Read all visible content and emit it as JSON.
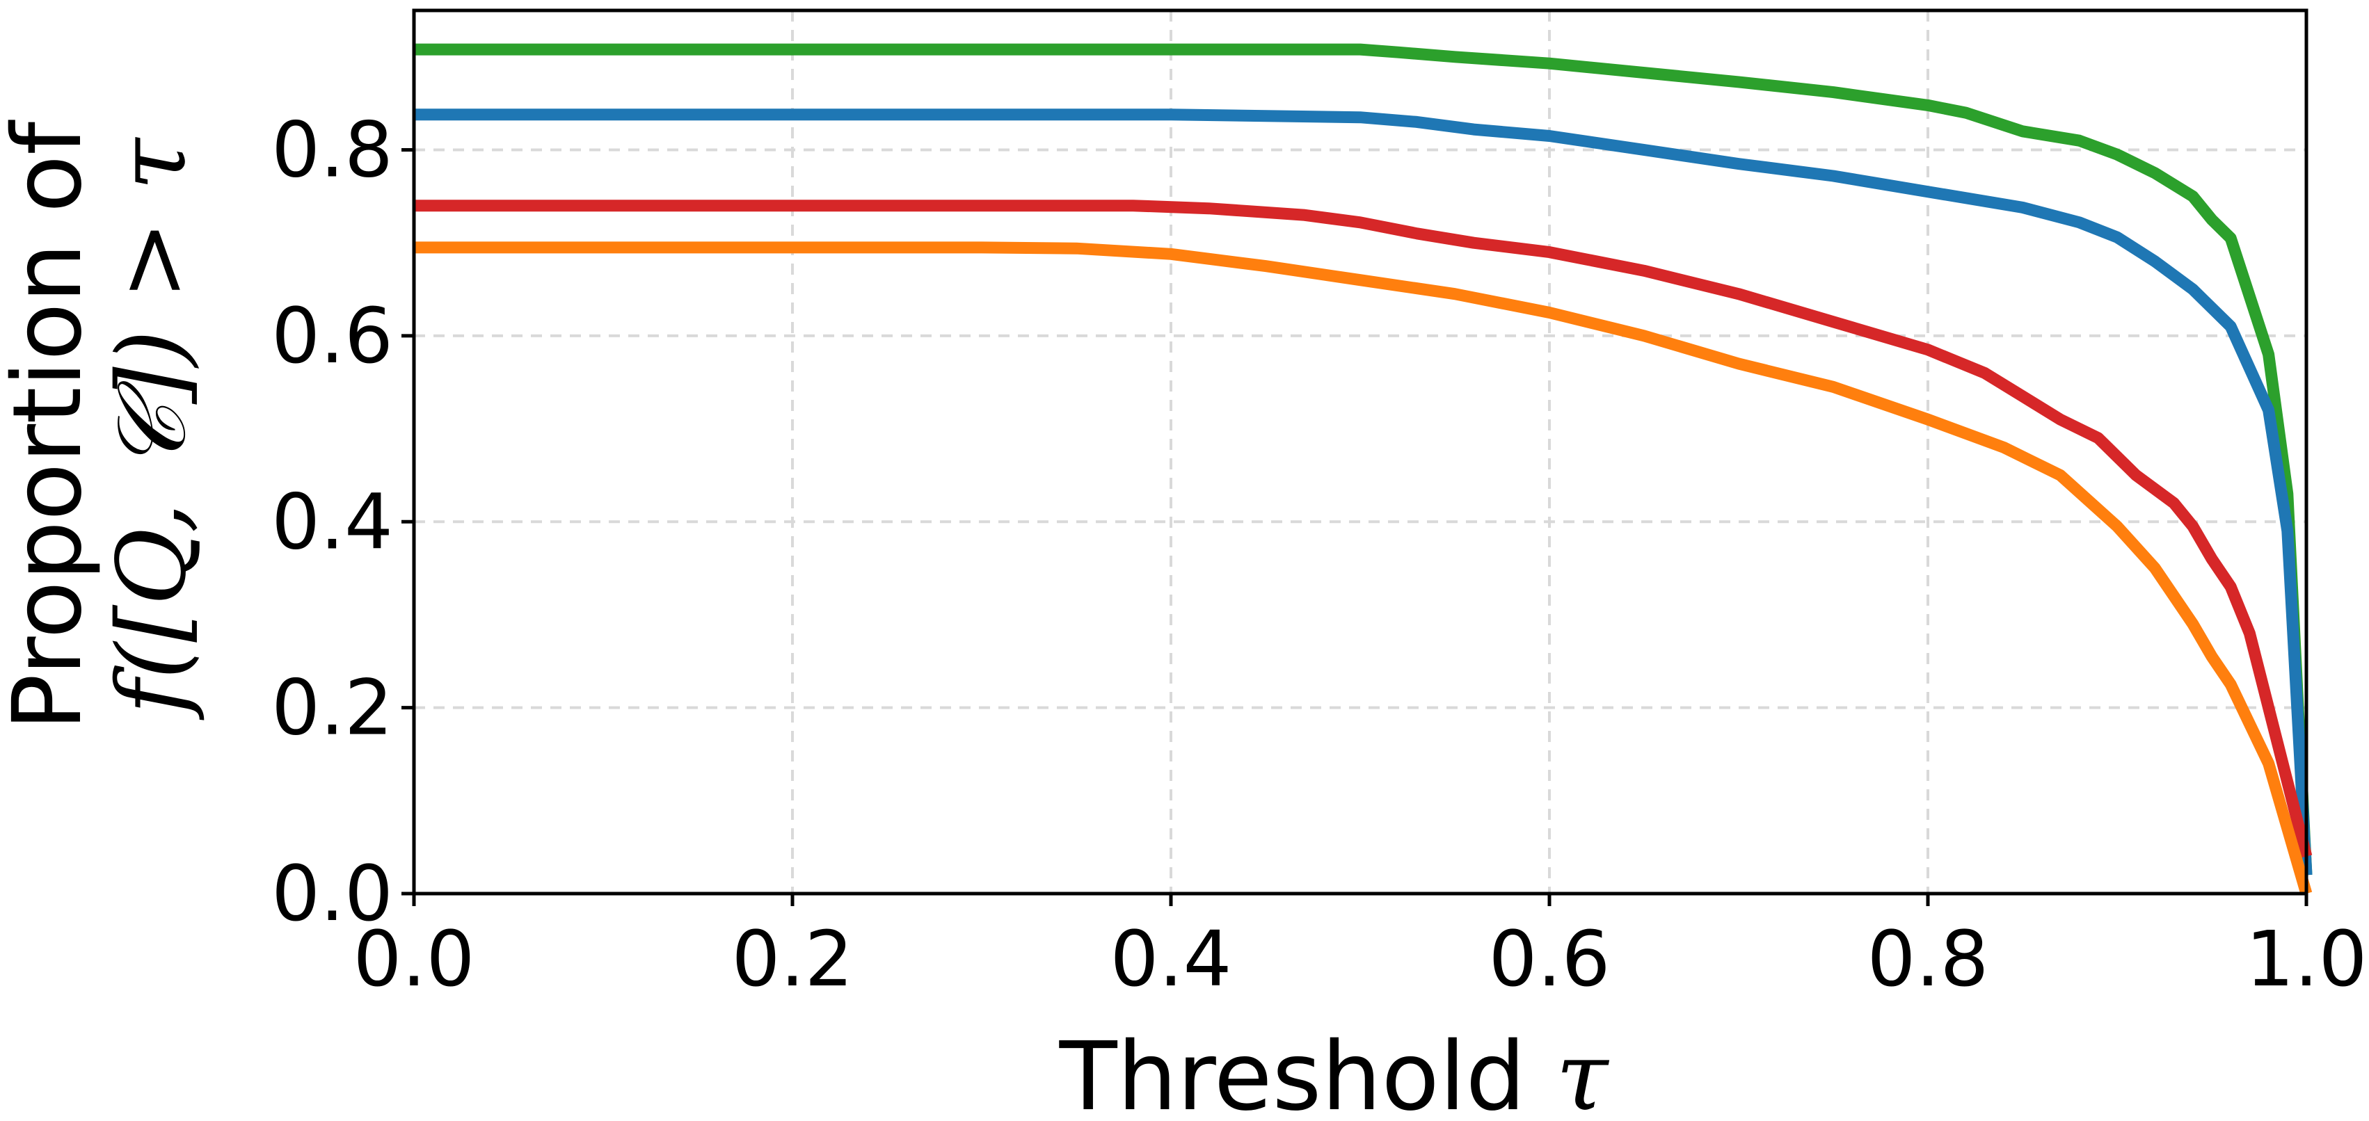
{
  "chart_data": {
    "type": "line",
    "title": "",
    "xlabel_text": "Threshold ",
    "xlabel_symbol": "τ",
    "ylabel_line1": "Proportion of",
    "ylabel_line2": "f([Q, 𝒞]) > τ",
    "xlim": [
      0.0,
      1.0
    ],
    "ylim": [
      0.0,
      0.95
    ],
    "xticks": [
      0.0,
      0.2,
      0.4,
      0.6,
      0.8,
      1.0
    ],
    "xtick_labels": [
      "0.0",
      "0.2",
      "0.4",
      "0.6",
      "0.8",
      "1.0"
    ],
    "yticks": [
      0.0,
      0.2,
      0.4,
      0.6,
      0.8
    ],
    "ytick_labels": [
      "0.0",
      "0.2",
      "0.4",
      "0.6",
      "0.8"
    ],
    "grid": true,
    "legend": "none",
    "series": [
      {
        "color": "#2ca02c",
        "x": [
          0.0,
          0.1,
          0.2,
          0.3,
          0.4,
          0.5,
          0.52,
          0.55,
          0.6,
          0.65,
          0.7,
          0.75,
          0.8,
          0.82,
          0.85,
          0.88,
          0.9,
          0.92,
          0.94,
          0.95,
          0.96,
          0.98,
          0.99,
          1.0
        ],
        "values": [
          0.908,
          0.908,
          0.908,
          0.908,
          0.908,
          0.908,
          0.905,
          0.9,
          0.893,
          0.883,
          0.873,
          0.862,
          0.848,
          0.84,
          0.82,
          0.81,
          0.795,
          0.775,
          0.75,
          0.725,
          0.705,
          0.58,
          0.43,
          0.02
        ]
      },
      {
        "color": "#1f77b4",
        "x": [
          0.0,
          0.1,
          0.2,
          0.3,
          0.4,
          0.5,
          0.53,
          0.56,
          0.6,
          0.65,
          0.7,
          0.75,
          0.8,
          0.85,
          0.88,
          0.9,
          0.92,
          0.94,
          0.96,
          0.98,
          0.99,
          1.0
        ],
        "values": [
          0.838,
          0.838,
          0.838,
          0.838,
          0.838,
          0.835,
          0.83,
          0.822,
          0.815,
          0.8,
          0.785,
          0.772,
          0.755,
          0.738,
          0.722,
          0.706,
          0.68,
          0.65,
          0.61,
          0.52,
          0.39,
          0.02
        ]
      },
      {
        "color": "#d62728",
        "x": [
          0.0,
          0.1,
          0.2,
          0.3,
          0.38,
          0.42,
          0.47,
          0.5,
          0.53,
          0.56,
          0.6,
          0.65,
          0.7,
          0.75,
          0.8,
          0.83,
          0.85,
          0.87,
          0.89,
          0.91,
          0.93,
          0.94,
          0.95,
          0.96,
          0.97,
          0.98,
          0.99,
          1.0
        ],
        "values": [
          0.74,
          0.74,
          0.74,
          0.74,
          0.74,
          0.737,
          0.73,
          0.722,
          0.71,
          0.7,
          0.69,
          0.67,
          0.645,
          0.615,
          0.585,
          0.56,
          0.535,
          0.51,
          0.49,
          0.45,
          0.42,
          0.395,
          0.36,
          0.33,
          0.28,
          0.2,
          0.12,
          0.04
        ]
      },
      {
        "color": "#ff7f0e",
        "x": [
          0.0,
          0.1,
          0.2,
          0.3,
          0.35,
          0.4,
          0.45,
          0.5,
          0.55,
          0.6,
          0.65,
          0.7,
          0.75,
          0.8,
          0.84,
          0.87,
          0.9,
          0.92,
          0.94,
          0.95,
          0.96,
          0.98,
          1.0
        ],
        "values": [
          0.695,
          0.695,
          0.695,
          0.695,
          0.694,
          0.688,
          0.675,
          0.66,
          0.645,
          0.625,
          0.6,
          0.57,
          0.545,
          0.51,
          0.48,
          0.45,
          0.395,
          0.35,
          0.29,
          0.255,
          0.225,
          0.14,
          0.0
        ]
      }
    ]
  }
}
